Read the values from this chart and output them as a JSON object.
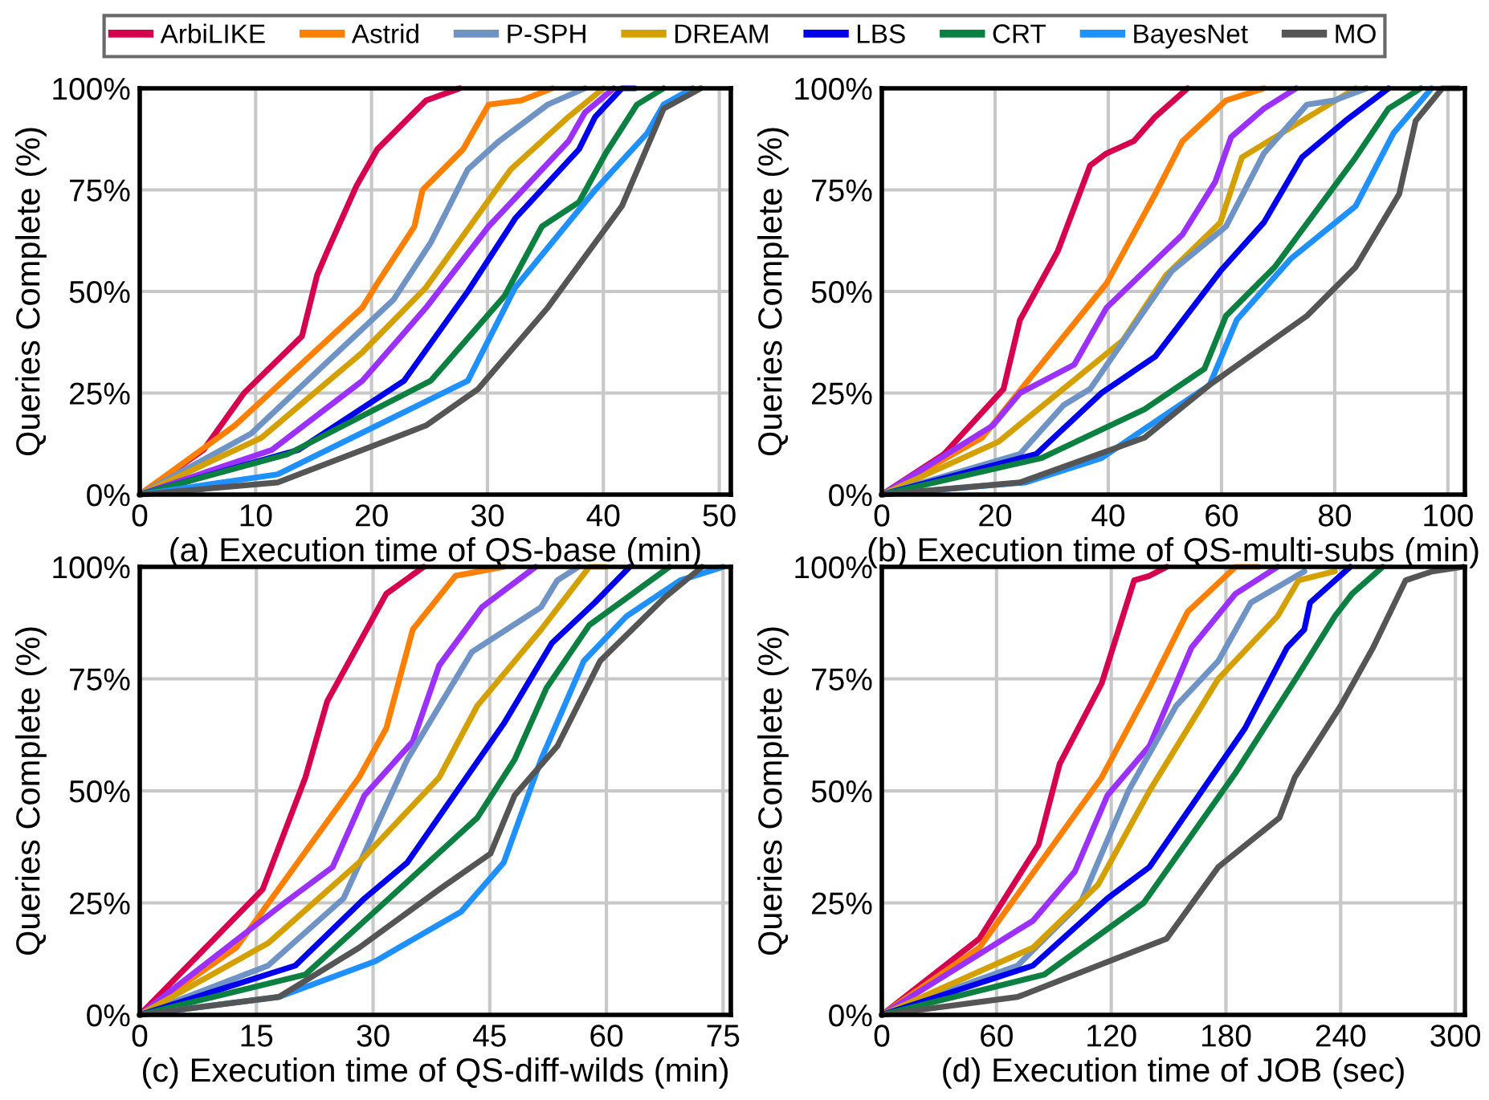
{
  "chart_data": [
    {
      "type": "line",
      "xlabel": "(a) Execution time of QS-base (min)",
      "ylabel": "Queries Complete (%)",
      "xlim": [
        0,
        51
      ],
      "xticks": [
        0,
        10,
        20,
        30,
        40,
        50
      ],
      "ylim": [
        0,
        100
      ],
      "yticks": [
        {
          "value": 0,
          "label": "0%"
        },
        {
          "value": 25,
          "label": "25%"
        },
        {
          "value": 50,
          "label": "50%"
        },
        {
          "value": 75,
          "label": "75%"
        },
        {
          "value": 100,
          "label": "100%"
        }
      ],
      "grid": true,
      "legend": "top",
      "line_style": "solid",
      "series": [
        {
          "name": "ArbiLIKE",
          "color": "#d6004f",
          "x": [
            0,
            5.5,
            9,
            14,
            15.3,
            16.2,
            18.7,
            20.5,
            24.7,
            27.6
          ],
          "values": [
            0,
            11,
            25,
            39,
            54,
            60,
            76,
            85,
            97,
            100
          ]
        },
        {
          "name": "Astrid",
          "color": "#ff7f00",
          "x": [
            0,
            8.2,
            19.2,
            20.5,
            23.7,
            24.4,
            27.9,
            30.1,
            32.9,
            35.6
          ],
          "values": [
            0,
            17,
            46,
            52,
            66,
            75,
            85,
            96,
            97,
            100
          ]
        },
        {
          "name": "P-SPH",
          "color": "#6e93c4",
          "x": [
            0,
            9.6,
            21.9,
            25.1,
            28.3,
            31,
            35.2,
            38.4
          ],
          "values": [
            0,
            15,
            48,
            62,
            80,
            87,
            96,
            100
          ]
        },
        {
          "name": "DREAM",
          "color": "#d4a000",
          "x": [
            0,
            10.5,
            19.2,
            24.7,
            32,
            37,
            40
          ],
          "values": [
            0,
            14,
            35,
            51,
            80,
            93,
            100
          ]
        },
        {
          "color": "#9b30ff",
          "x": [
            0,
            11.4,
            19.2,
            24.7,
            30.1,
            37,
            38.4,
            40.9
          ],
          "values": [
            0,
            11,
            28,
            46,
            66,
            87,
            94,
            100
          ]
        },
        {
          "name": "LBS",
          "color": "#0000ee",
          "x": [
            0,
            13.7,
            22.8,
            28.3,
            32.4,
            37.9,
            39.3,
            41.6,
            42.7
          ],
          "values": [
            0,
            11,
            28,
            50,
            68,
            85,
            93,
            100,
            100
          ]
        },
        {
          "name": "CRT",
          "color": "#0b8040",
          "x": [
            0,
            12.8,
            25.1,
            31.5,
            34.7,
            37.9,
            40.2,
            42.9,
            45.2
          ],
          "values": [
            0,
            10,
            28,
            49,
            66,
            72,
            84,
            96,
            100
          ]
        },
        {
          "name": "BayesNet",
          "color": "#1e90ff",
          "x": [
            0,
            11.9,
            28.3,
            32.4,
            39.3,
            43.8,
            45.2,
            47.7
          ],
          "values": [
            0,
            5,
            28,
            51,
            75,
            89,
            96,
            100
          ]
        },
        {
          "name": "MO",
          "color": "#555555",
          "x": [
            0,
            11.9,
            24.7,
            29.2,
            35.2,
            41.6,
            45.2,
            48.4
          ],
          "values": [
            0,
            3,
            17,
            26,
            46,
            71,
            95,
            100
          ]
        }
      ]
    },
    {
      "type": "line",
      "xlabel": "(b) Execution time of QS-multi-subs (min)",
      "ylabel": "Queries Complete (%)",
      "xlim": [
        0,
        103
      ],
      "xticks": [
        0,
        20,
        40,
        60,
        80,
        100
      ],
      "ylim": [
        0,
        100
      ],
      "yticks": [
        {
          "value": 0,
          "label": "0%"
        },
        {
          "value": 25,
          "label": "25%"
        },
        {
          "value": 50,
          "label": "50%"
        },
        {
          "value": 75,
          "label": "75%"
        },
        {
          "value": 100,
          "label": "100%"
        }
      ],
      "grid": true,
      "line_style": "solid",
      "series": [
        {
          "name": "ArbiLIKE",
          "color": "#d6004f",
          "x": [
            0,
            11,
            21.5,
            24.4,
            31.1,
            36.8,
            39.7,
            44.5,
            48.3,
            54
          ],
          "values": [
            0,
            10,
            26,
            43,
            60,
            81,
            84,
            87,
            93,
            100
          ]
        },
        {
          "name": "Astrid",
          "color": "#ff7f00",
          "x": [
            0,
            17.7,
            39.7,
            48.3,
            53.1,
            60.8,
            67.5
          ],
          "values": [
            0,
            14,
            52,
            74,
            87,
            97,
            100
          ]
        },
        {
          "color": "#9b30ff",
          "x": [
            0,
            19.6,
            24.4,
            34,
            39.7,
            53.1,
            58.9,
            61.7,
            67.5,
            73.2
          ],
          "values": [
            0,
            17,
            25,
            32,
            46,
            64,
            77,
            88,
            95,
            100
          ]
        },
        {
          "name": "DREAM",
          "color": "#d4a000",
          "x": [
            0,
            20.6,
            42.6,
            50.2,
            59.8,
            63.6,
            74.2,
            83.7
          ],
          "values": [
            0,
            13,
            38,
            54,
            67,
            83,
            92,
            100
          ]
        },
        {
          "name": "P-SPH",
          "color": "#6e93c4",
          "x": [
            0,
            24.4,
            32.1,
            36.8,
            51.2,
            60.8,
            67.5,
            75.1,
            79.9,
            85.6
          ],
          "values": [
            0,
            10,
            22,
            26,
            55,
            66,
            84,
            96,
            97,
            100
          ]
        },
        {
          "name": "LBS",
          "color": "#0000ee",
          "x": [
            0,
            27.3,
            38.8,
            48.3,
            59.8,
            67.5,
            74.2,
            81.9,
            89.5
          ],
          "values": [
            0,
            10,
            25,
            34,
            55,
            67,
            83,
            92,
            100
          ]
        },
        {
          "name": "CRT",
          "color": "#0b8040",
          "x": [
            0,
            28.2,
            46.4,
            57,
            60.8,
            69.4,
            83.7,
            89.5,
            95.2
          ],
          "values": [
            0,
            9,
            21,
            31,
            44,
            56,
            83,
            95,
            100
          ]
        },
        {
          "name": "BayesNet",
          "color": "#1e90ff",
          "x": [
            0,
            25.4,
            38.8,
            57.9,
            62.7,
            72.2,
            83.7,
            90.4,
            97.1
          ],
          "values": [
            0,
            3,
            9,
            27,
            43,
            58,
            71,
            89,
            100
          ]
        },
        {
          "name": "MO",
          "color": "#555555",
          "x": [
            0,
            24.4,
            46.4,
            57.9,
            75.1,
            83.7,
            91.4,
            94.3,
            99,
            101.9
          ],
          "values": [
            0,
            3,
            14,
            27,
            44,
            56,
            74,
            92,
            100,
            100
          ]
        }
      ]
    },
    {
      "type": "line",
      "xlabel": "(c) Execution time of QS-diff-wilds (min)",
      "ylabel": "Queries Complete (%)",
      "xlim": [
        0,
        76
      ],
      "xticks": [
        0,
        15,
        30,
        45,
        60,
        75
      ],
      "ylim": [
        0,
        100
      ],
      "yticks": [
        {
          "value": 0,
          "label": "0%"
        },
        {
          "value": 25,
          "label": "25%"
        },
        {
          "value": 50,
          "label": "50%"
        },
        {
          "value": 75,
          "label": "75%"
        },
        {
          "value": 100,
          "label": "100%"
        }
      ],
      "grid": true,
      "line_style": "solid",
      "series": [
        {
          "name": "ArbiLIKE",
          "color": "#d6004f",
          "x": [
            0,
            15.8,
            21.3,
            24.1,
            31.7,
            36.5
          ],
          "values": [
            0,
            28,
            53,
            70,
            94,
            100
          ]
        },
        {
          "name": "Astrid",
          "color": "#ff7f00",
          "x": [
            0,
            12.4,
            28.2,
            31.7,
            35.1,
            40.6,
            46.8
          ],
          "values": [
            0,
            15,
            53,
            64,
            86,
            98,
            100
          ]
        },
        {
          "color": "#9b30ff",
          "x": [
            0,
            18.6,
            24.8,
            28.9,
            35.1,
            38.5,
            44,
            50.9
          ],
          "values": [
            0,
            25,
            33,
            49,
            61,
            78,
            91,
            100
          ]
        },
        {
          "name": "P-SPH",
          "color": "#6e93c4",
          "x": [
            0,
            16.5,
            26.2,
            34.4,
            42.7,
            51.6,
            53.7,
            56.4
          ],
          "values": [
            0,
            11,
            26,
            57,
            81,
            91,
            97,
            100
          ]
        },
        {
          "name": "DREAM",
          "color": "#d4a000",
          "x": [
            0,
            16.5,
            28.2,
            38.5,
            43.4,
            51.6,
            57.8,
            59.9
          ],
          "values": [
            0,
            16,
            34,
            53,
            69,
            86,
            100,
            100
          ]
        },
        {
          "name": "LBS",
          "color": "#0000ee",
          "x": [
            0,
            20,
            28.9,
            34.4,
            46.8,
            53,
            58.5,
            63
          ],
          "values": [
            0,
            11,
            26,
            34,
            65,
            83,
            92,
            100
          ]
        },
        {
          "name": "CRT",
          "color": "#0b8040",
          "x": [
            0,
            21.3,
            28.9,
            43.4,
            48.2,
            52.3,
            57.8,
            68.1
          ],
          "values": [
            0,
            9,
            21,
            44,
            57,
            73,
            87,
            100
          ]
        },
        {
          "name": "BayesNet",
          "color": "#1e90ff",
          "x": [
            0,
            17.9,
            30.3,
            41.3,
            46.8,
            51.6,
            57.1,
            62.6,
            69.5,
            75
          ],
          "values": [
            0,
            4,
            12,
            23,
            34,
            57,
            79,
            89,
            97,
            100
          ]
        },
        {
          "name": "MO",
          "color": "#555555",
          "x": [
            0,
            17.9,
            28.2,
            38.5,
            45.1,
            48.2,
            53.7,
            59.2,
            67.4,
            72.3
          ],
          "values": [
            0,
            4,
            15,
            28,
            36,
            49,
            60,
            79,
            93,
            100
          ]
        }
      ]
    },
    {
      "type": "line",
      "xlabel": "(d) Execution time of JOB (sec)",
      "ylabel": "Queries Complete (%)",
      "xlim": [
        0,
        305
      ],
      "xticks": [
        0,
        60,
        120,
        180,
        240,
        300
      ],
      "ylim": [
        0,
        100
      ],
      "yticks": [
        {
          "value": 0,
          "label": "0%"
        },
        {
          "value": 25,
          "label": "25%"
        },
        {
          "value": 50,
          "label": "50%"
        },
        {
          "value": 75,
          "label": "75%"
        },
        {
          "value": 100,
          "label": "100%"
        }
      ],
      "grid": true,
      "line_style": "solid",
      "series": [
        {
          "name": "ArbiLIKE",
          "color": "#d6004f",
          "x": [
            0,
            51,
            82,
            93,
            115,
            132,
            140,
            149
          ],
          "values": [
            0,
            17,
            38,
            56,
            74,
            97,
            98,
            100
          ]
        },
        {
          "name": "Astrid",
          "color": "#ff7f00",
          "x": [
            0,
            51,
            115,
            140,
            160,
            185,
            197
          ],
          "values": [
            0,
            15,
            53,
            73,
            90,
            100,
            100
          ]
        },
        {
          "color": "#9b30ff",
          "x": [
            0,
            79,
            101,
            118,
            140,
            162,
            185,
            207
          ],
          "values": [
            0,
            21,
            32,
            49,
            60,
            82,
            94,
            100
          ]
        },
        {
          "name": "P-SPH",
          "color": "#6e93c4",
          "x": [
            0,
            71,
            104,
            129,
            154,
            176,
            193,
            221
          ],
          "values": [
            0,
            11,
            25,
            50,
            69,
            79,
            92,
            99
          ]
        },
        {
          "name": "DREAM",
          "color": "#d4a000",
          "x": [
            0,
            79,
            113,
            140,
            176,
            207,
            218,
            237
          ],
          "values": [
            0,
            15,
            29,
            50,
            75,
            89,
            97,
            99
          ]
        },
        {
          "name": "LBS",
          "color": "#0000ee",
          "x": [
            0,
            79,
            118,
            140,
            190,
            212,
            221,
            224,
            245
          ],
          "values": [
            0,
            11,
            26,
            33,
            64,
            82,
            86,
            92,
            100
          ]
        },
        {
          "name": "CRT",
          "color": "#0b8040",
          "x": [
            0,
            85,
            137,
            185,
            218,
            237,
            246,
            262
          ],
          "values": [
            0,
            9,
            25,
            54,
            76,
            89,
            94,
            100
          ]
        },
        {
          "name": "MO",
          "color": "#555555",
          "x": [
            0,
            71,
            149,
            176,
            208,
            216,
            240,
            257,
            274,
            288,
            304
          ],
          "values": [
            0,
            4,
            17,
            33,
            44,
            53,
            69,
            82,
            97,
            99,
            100
          ]
        }
      ]
    }
  ]
}
